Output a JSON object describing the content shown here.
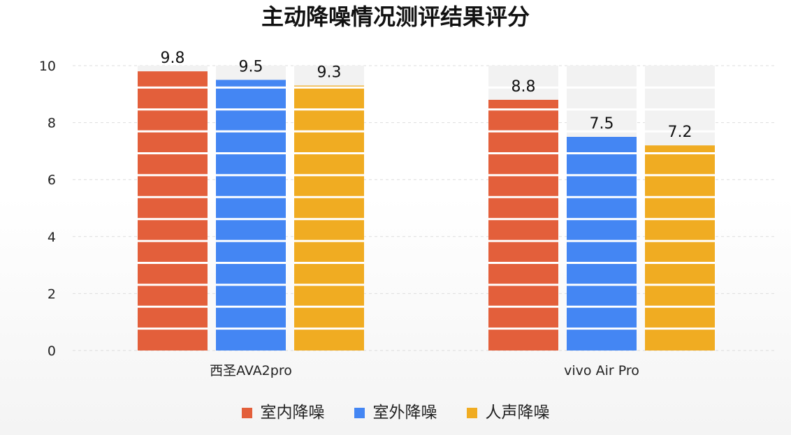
{
  "chart_data": {
    "type": "bar",
    "title": "主动降噪情况测评结果评分",
    "categories": [
      "西圣AVA2pro",
      "vivo Air Pro"
    ],
    "series": [
      {
        "name": "室内降噪",
        "values": [
          9.8,
          8.8
        ],
        "color": "#e35f3b"
      },
      {
        "name": "室外降噪",
        "values": [
          9.5,
          7.5
        ],
        "color": "#4486f3"
      },
      {
        "name": "人声降噪",
        "values": [
          9.3,
          7.2
        ],
        "color": "#f0ac22"
      }
    ],
    "ylim": [
      0,
      10
    ],
    "yticks": [
      "0",
      "2",
      "4",
      "6",
      "8",
      "10"
    ],
    "xlabel": "",
    "ylabel": "",
    "grid": true,
    "legend_position": "bottom",
    "background_track_color": "#f2f2f2"
  }
}
